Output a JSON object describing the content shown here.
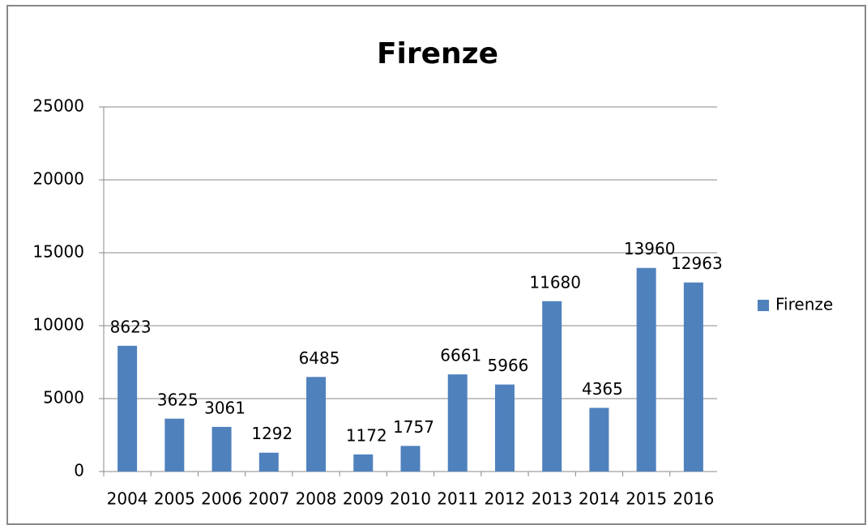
{
  "chart_data": {
    "type": "bar",
    "title": "Firenze",
    "categories": [
      "2004",
      "2005",
      "2006",
      "2007",
      "2008",
      "2009",
      "2010",
      "2011",
      "2012",
      "2013",
      "2014",
      "2015",
      "2016"
    ],
    "series": [
      {
        "name": "Firenze",
        "color": "#4f81bd",
        "values": [
          8623,
          3625,
          3061,
          1292,
          6485,
          1172,
          1757,
          6661,
          5966,
          11680,
          4365,
          13960,
          12963
        ]
      }
    ],
    "ylim": [
      0,
      25000
    ],
    "yticks": [
      0,
      5000,
      10000,
      15000,
      20000,
      25000
    ],
    "grid": true,
    "legend": "right"
  }
}
